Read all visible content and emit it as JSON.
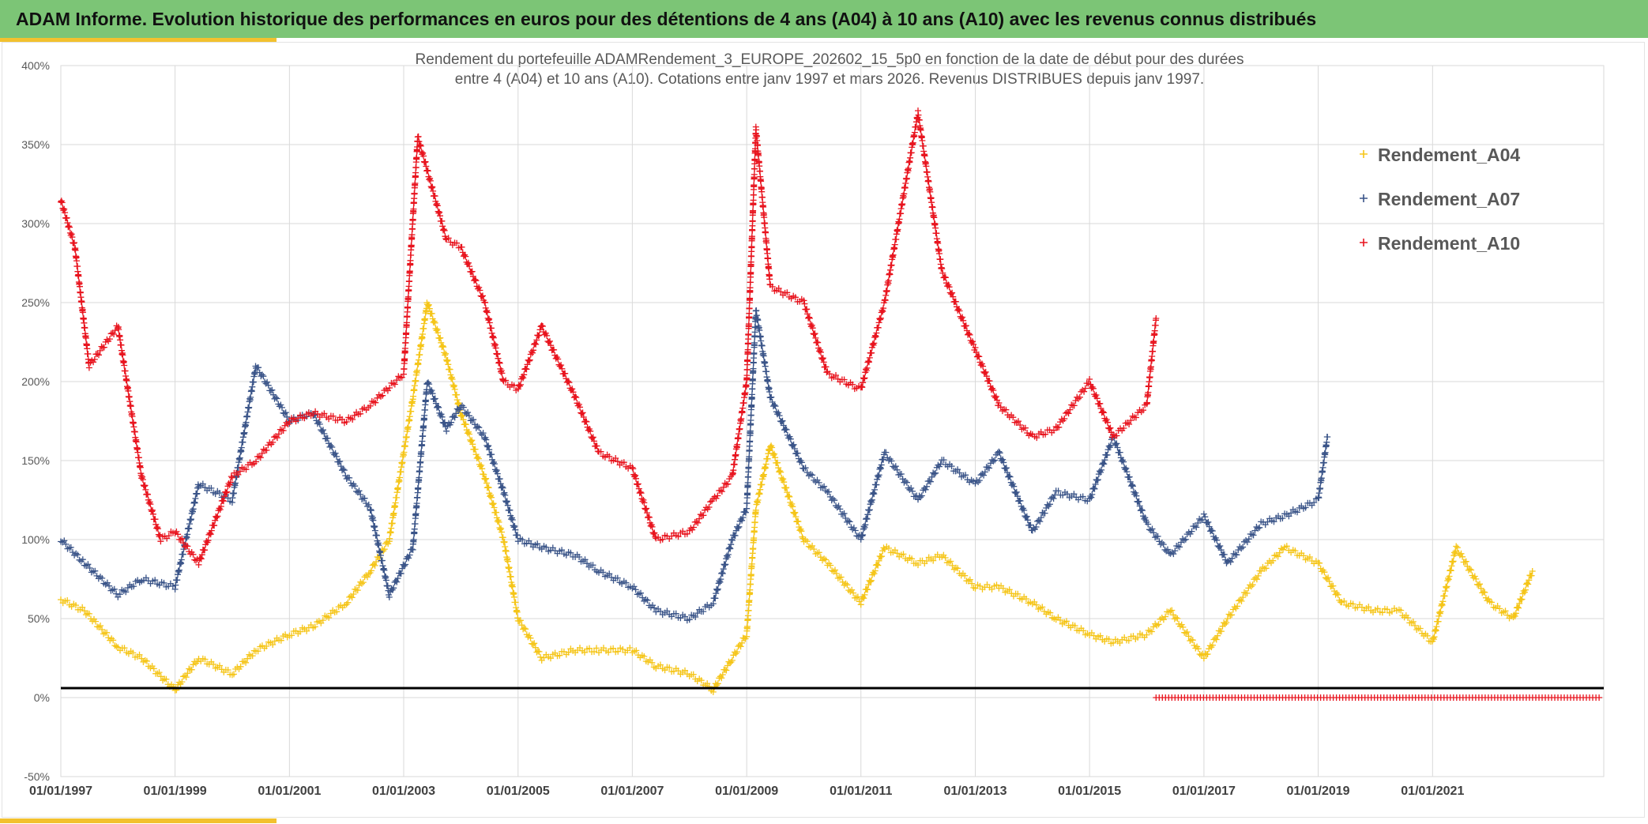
{
  "header": {
    "title": "ADAM Informe. Evolution historique des performances en euros pour des détentions de 4 ans (A04) à 10 ans (A10) avec les revenus connus distribués"
  },
  "colors": {
    "banner": "#7cc576",
    "accent": "#f2c12e",
    "A04": "#f5c518",
    "A07": "#3a5488",
    "A10": "#e8141e"
  },
  "chart_data": {
    "type": "scatter",
    "title_lines": [
      "Rendement du portefeuille ADAMRendement_3_EUROPE_202602_15_5p0  en fonction de la date de début pour des durées",
      "entre 4 (A04) et 10 ans (A10). Cotations entre janv 1997 et mars 2026. Revenus DISTRIBUES depuis janv 1997."
    ],
    "xlim": [
      "1997-01-01",
      "2023-12-31"
    ],
    "ylim": [
      -50,
      400
    ],
    "y_ticks": [
      "-50%",
      "0%",
      "50%",
      "100%",
      "150%",
      "200%",
      "250%",
      "300%",
      "350%",
      "400%"
    ],
    "x_ticks": [
      "01/01/1997",
      "01/01/1999",
      "01/01/2001",
      "01/01/2003",
      "01/01/2005",
      "01/01/2007",
      "01/01/2009",
      "01/01/2011",
      "01/01/2013",
      "01/01/2015",
      "01/01/2017",
      "01/01/2019",
      "01/01/2021"
    ],
    "reference_line": 6,
    "grid": true,
    "legend_position": "top-right",
    "series": [
      {
        "name": "Rendement_A04",
        "color": "#f5c518",
        "x": [
          "1997-01",
          "1997-06",
          "1998-01",
          "1998-06",
          "1999-01",
          "1999-06",
          "2000-01",
          "2000-06",
          "2001-01",
          "2001-06",
          "2002-01",
          "2002-06",
          "2002-10",
          "2003-03",
          "2003-06",
          "2003-10",
          "2004-01",
          "2004-06",
          "2004-10",
          "2005-01",
          "2005-06",
          "2006-01",
          "2006-06",
          "2007-01",
          "2007-06",
          "2008-01",
          "2008-06",
          "2008-10",
          "2009-01",
          "2009-03",
          "2009-06",
          "2010-01",
          "2010-06",
          "2011-01",
          "2011-06",
          "2012-01",
          "2012-06",
          "2013-01",
          "2013-06",
          "2014-01",
          "2014-06",
          "2015-01",
          "2015-06",
          "2016-01",
          "2016-06",
          "2017-01",
          "2017-06",
          "2018-01",
          "2018-06",
          "2019-01",
          "2019-06",
          "2020-01",
          "2020-06",
          "2021-01",
          "2021-06",
          "2022-01",
          "2022-06",
          "2022-10"
        ],
        "y": [
          62,
          55,
          32,
          25,
          5,
          25,
          15,
          30,
          40,
          45,
          60,
          80,
          100,
          190,
          250,
          215,
          180,
          140,
          100,
          50,
          25,
          30,
          30,
          30,
          20,
          15,
          5,
          25,
          40,
          120,
          160,
          100,
          85,
          60,
          95,
          85,
          90,
          70,
          70,
          60,
          50,
          40,
          35,
          40,
          55,
          25,
          50,
          80,
          95,
          85,
          60,
          55,
          55,
          35,
          95,
          60,
          50,
          80
        ]
      },
      {
        "name": "Rendement_A07",
        "color": "#3a5488",
        "x": [
          "1997-01",
          "1997-06",
          "1998-01",
          "1998-06",
          "1999-01",
          "1999-06",
          "2000-01",
          "2000-06",
          "2001-01",
          "2001-06",
          "2002-01",
          "2002-06",
          "2002-10",
          "2003-03",
          "2003-06",
          "2003-10",
          "2004-01",
          "2004-06",
          "2004-10",
          "2005-01",
          "2005-06",
          "2006-01",
          "2006-06",
          "2007-01",
          "2007-06",
          "2008-01",
          "2008-06",
          "2008-10",
          "2009-01",
          "2009-03",
          "2009-06",
          "2010-01",
          "2010-06",
          "2011-01",
          "2011-06",
          "2012-01",
          "2012-06",
          "2013-01",
          "2013-06",
          "2014-01",
          "2014-06",
          "2015-01",
          "2015-06",
          "2016-01",
          "2016-06",
          "2017-01",
          "2017-06",
          "2018-01",
          "2018-06",
          "2019-01",
          "2019-03"
        ],
        "y": [
          100,
          85,
          65,
          75,
          70,
          135,
          125,
          210,
          175,
          180,
          140,
          120,
          65,
          95,
          200,
          170,
          185,
          165,
          130,
          100,
          95,
          90,
          80,
          70,
          55,
          50,
          60,
          100,
          120,
          245,
          190,
          145,
          130,
          100,
          155,
          125,
          150,
          135,
          155,
          105,
          130,
          125,
          165,
          110,
          90,
          115,
          85,
          110,
          115,
          125,
          165
        ]
      },
      {
        "name": "Rendement_A10",
        "color": "#e8141e",
        "x": [
          "1997-01",
          "1997-04",
          "1997-07",
          "1998-01",
          "1998-06",
          "1998-10",
          "1999-01",
          "1999-06",
          "2000-01",
          "2000-06",
          "2001-01",
          "2001-06",
          "2002-01",
          "2002-06",
          "2003-01",
          "2003-04",
          "2003-10",
          "2004-01",
          "2004-06",
          "2004-10",
          "2005-01",
          "2005-06",
          "2006-01",
          "2006-06",
          "2007-01",
          "2007-06",
          "2008-01",
          "2008-06",
          "2008-10",
          "2009-01",
          "2009-03",
          "2009-06",
          "2010-01",
          "2010-06",
          "2011-01",
          "2011-06",
          "2012-01",
          "2012-06",
          "2013-01",
          "2013-06",
          "2014-01",
          "2014-06",
          "2015-01",
          "2015-06",
          "2016-01",
          "2016-03"
        ],
        "y": [
          315,
          285,
          210,
          235,
          140,
          100,
          105,
          85,
          140,
          150,
          175,
          180,
          175,
          185,
          205,
          355,
          290,
          285,
          250,
          200,
          195,
          235,
          190,
          155,
          145,
          100,
          105,
          125,
          140,
          200,
          360,
          260,
          250,
          205,
          195,
          250,
          370,
          270,
          220,
          185,
          165,
          170,
          200,
          165,
          185,
          240
        ]
      },
      {
        "name": "A10_zero_segment",
        "color": "#e8141e",
        "x": [
          "2016-03",
          "2023-12"
        ],
        "y": [
          0,
          0
        ]
      }
    ]
  }
}
